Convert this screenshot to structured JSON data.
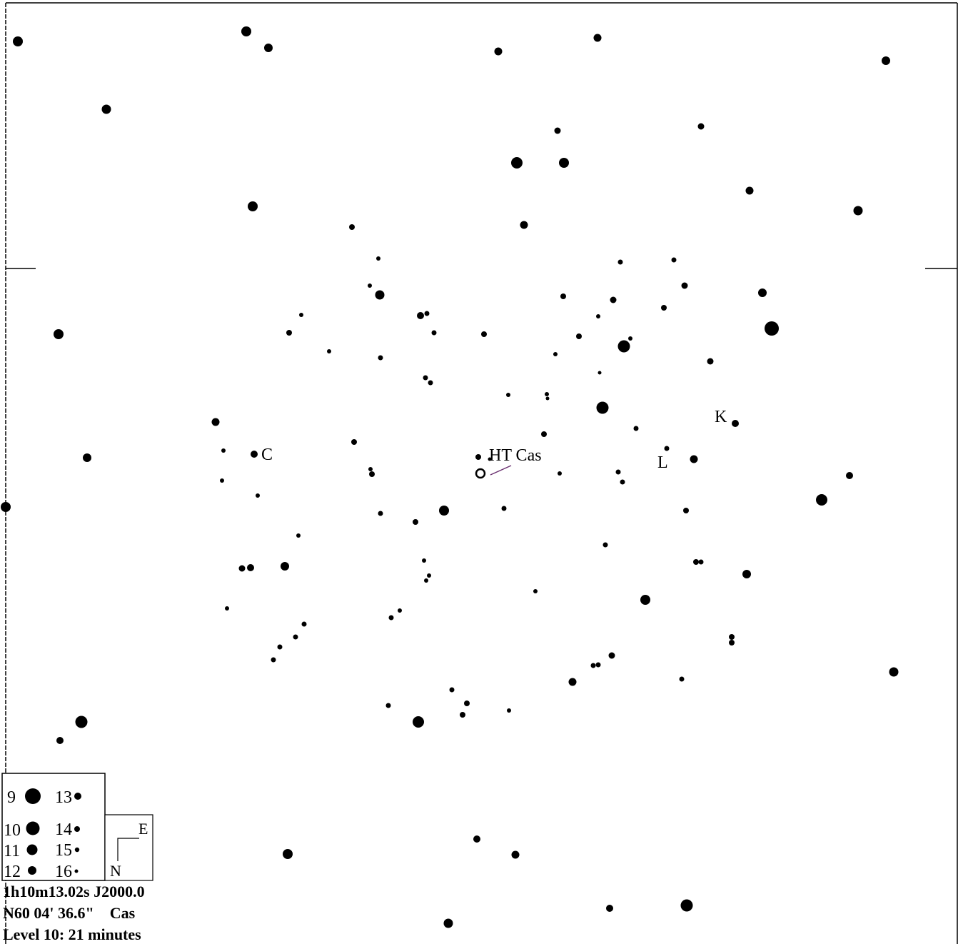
{
  "chart": {
    "target_name": "HT Cas",
    "comparison_labels": [
      "C",
      "K",
      "L"
    ]
  },
  "legend": {
    "magnitudes": [
      "9",
      "10",
      "11",
      "12",
      "13",
      "14",
      "15",
      "16"
    ]
  },
  "orientation": {
    "east": "E",
    "north": "N"
  },
  "info": {
    "ra_line": "1h10m13.02s J2000.0",
    "dec_line": "N60 04' 36.6\"    Cas",
    "level_line": "Level 10: 21 minutes"
  }
}
